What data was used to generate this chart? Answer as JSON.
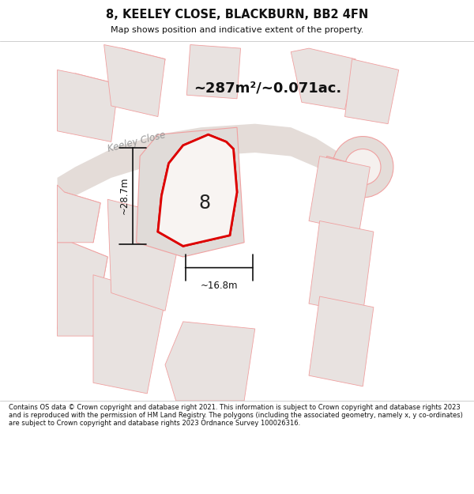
{
  "title": "8, KEELEY CLOSE, BLACKBURN, BB2 4FN",
  "subtitle": "Map shows position and indicative extent of the property.",
  "area_text": "~287m²/~0.071ac.",
  "label_number": "8",
  "dim_width": "~16.8m",
  "dim_height": "~28.7m",
  "street_label": "Keeley Close",
  "footer": "Contains OS data © Crown copyright and database right 2021. This information is subject to Crown copyright and database rights 2023 and is reproduced with the permission of HM Land Registry. The polygons (including the associated geometry, namely x, y co-ordinates) are subject to Crown copyright and database rights 2023 Ordnance Survey 100026316.",
  "map_bg": "#f5f0ee",
  "road_fill": "#e0d8d4",
  "plot_fill": "#d8d0cc",
  "plot_fill2": "#e8e2e0",
  "plot_outline": "#f0a0a0",
  "highlight_fill": "#ffffff",
  "highlight_outline": "#dd0000",
  "street_color": "#aaaaaa",
  "dim_color": "#111111",
  "text_dark": "#111111",
  "text_mid": "#555555"
}
